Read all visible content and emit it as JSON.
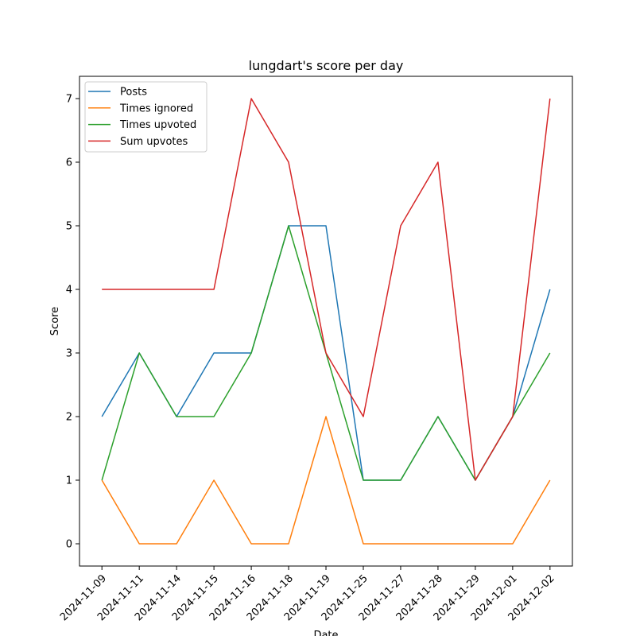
{
  "chart_data": {
    "type": "line",
    "title": "lungdart's score per day",
    "xlabel": "Date",
    "ylabel": "Score",
    "x": [
      "2024-11-09",
      "2024-11-11",
      "2024-11-14",
      "2024-11-15",
      "2024-11-16",
      "2024-11-18",
      "2024-11-19",
      "2024-11-25",
      "2024-11-27",
      "2024-11-28",
      "2024-11-29",
      "2024-12-01",
      "2024-12-02"
    ],
    "ylim": [
      -0.35,
      7.35
    ],
    "yticks": [
      0,
      1,
      2,
      3,
      4,
      5,
      6,
      7
    ],
    "legend": "top-left",
    "grid": false,
    "series": [
      {
        "name": "Posts",
        "color": "#1f77b4",
        "values": [
          2,
          3,
          2,
          3,
          3,
          5,
          5,
          1,
          1,
          2,
          1,
          2,
          4
        ]
      },
      {
        "name": "Times ignored",
        "color": "#ff7f0e",
        "values": [
          1,
          0,
          0,
          1,
          0,
          0,
          2,
          0,
          0,
          0,
          0,
          0,
          1
        ]
      },
      {
        "name": "Times upvoted",
        "color": "#2ca02c",
        "values": [
          1,
          3,
          2,
          2,
          3,
          5,
          3,
          1,
          1,
          2,
          1,
          2,
          3
        ]
      },
      {
        "name": "Sum upvotes",
        "color": "#d62728",
        "values": [
          4,
          4,
          4,
          4,
          7,
          6,
          3,
          2,
          5,
          6,
          1,
          2,
          7
        ]
      }
    ]
  }
}
